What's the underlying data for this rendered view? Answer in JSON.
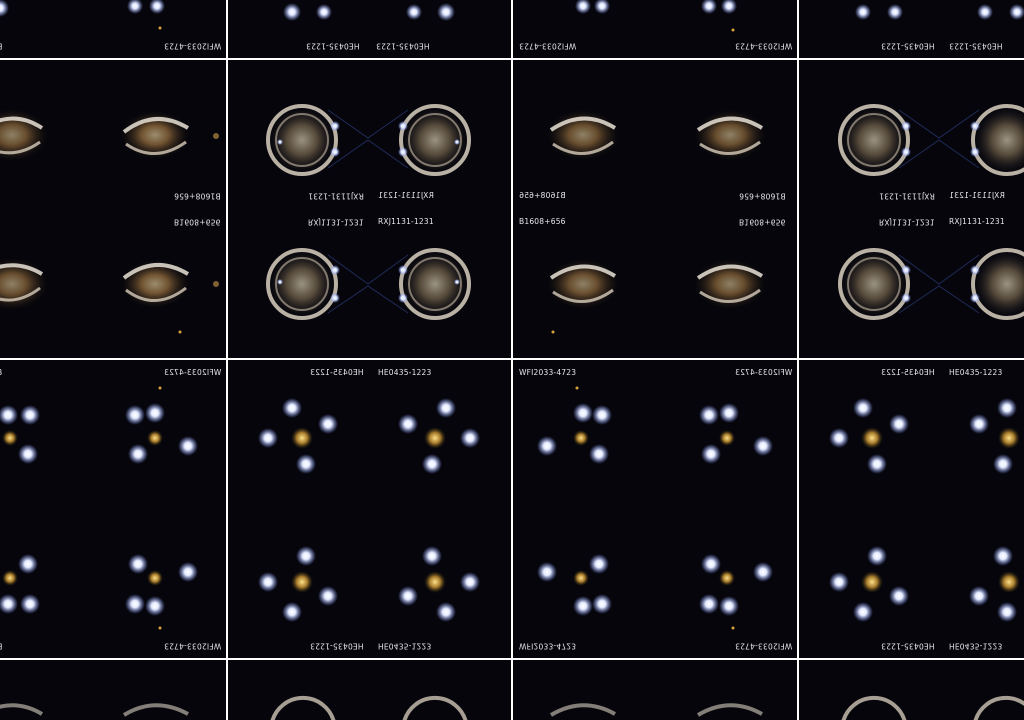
{
  "labels": {
    "wfi": "WFI2033-4723",
    "he": "HE0435-1223",
    "rxj": "RXJ1131-1231",
    "b1608": "B1608+656"
  },
  "description_tiles": [
    {
      "kind": "b1608"
    },
    {
      "kind": "rxj"
    },
    {
      "kind": "wfi"
    },
    {
      "kind": "he"
    }
  ]
}
